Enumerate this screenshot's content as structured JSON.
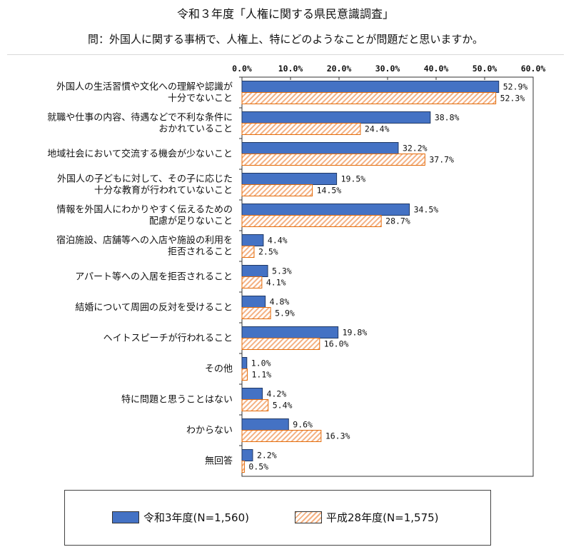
{
  "title": "令和３年度「人権に関する県民意識調査」",
  "question": "問：外国人に関する事柄で、人権上、特にどのようなことが問題だと思いますか。",
  "colors": {
    "series_a": "#4472c4",
    "series_b_stripe": "#f4b183",
    "series_b_border": "#e46c0a"
  },
  "legend": {
    "series_a": "令和3年度(N=1,560)",
    "series_b": "平成28年度(N=1,575)"
  },
  "chart_data": {
    "type": "bar",
    "orientation": "horizontal",
    "xlim": [
      0,
      60
    ],
    "xticks": [
      "0.0%",
      "10.0%",
      "20.0%",
      "30.0%",
      "40.0%",
      "50.0%",
      "60.0%"
    ],
    "categories": [
      [
        "外国人の生活習慣や文化への理解や認識が",
        "十分でないこと"
      ],
      [
        "就職や仕事の内容、待遇などで不利な条件に",
        "おかれていること"
      ],
      [
        "地域社会において交流する機会が少ないこと"
      ],
      [
        "外国人の子どもに対して、その子に応じた",
        "十分な教育が行われていないこと"
      ],
      [
        "情報を外国人にわかりやすく伝えるための",
        "配慮が足りないこと"
      ],
      [
        "宿泊施設、店舗等への入店や施設の利用を",
        "拒否されること"
      ],
      [
        "アパート等への入居を拒否されること"
      ],
      [
        "結婚について周囲の反対を受けること"
      ],
      [
        "ヘイトスピーチが行われること"
      ],
      [
        "その他"
      ],
      [
        "特に問題と思うことはない"
      ],
      [
        "わからない"
      ],
      [
        "無回答"
      ]
    ],
    "series": [
      {
        "name": "令和3年度(N=1,560)",
        "values": [
          52.9,
          38.8,
          32.2,
          19.5,
          34.5,
          4.4,
          5.3,
          4.8,
          19.8,
          1.0,
          4.2,
          9.6,
          2.2
        ],
        "labels": [
          "52.9%",
          "38.8%",
          "32.2%",
          "19.5%",
          "34.5%",
          "4.4%",
          "5.3%",
          "4.8%",
          "19.8%",
          "1.0%",
          "4.2%",
          "9.6%",
          "2.2%"
        ]
      },
      {
        "name": "平成28年度(N=1,575)",
        "values": [
          52.3,
          24.4,
          37.7,
          14.5,
          28.7,
          2.5,
          4.1,
          5.9,
          16.0,
          1.1,
          5.4,
          16.3,
          0.5
        ],
        "labels": [
          "52.3%",
          "24.4%",
          "37.7%",
          "14.5%",
          "28.7%",
          "2.5%",
          "4.1%",
          "5.9%",
          "16.0%",
          "1.1%",
          "5.4%",
          "16.3%",
          "0.5%"
        ]
      }
    ]
  }
}
